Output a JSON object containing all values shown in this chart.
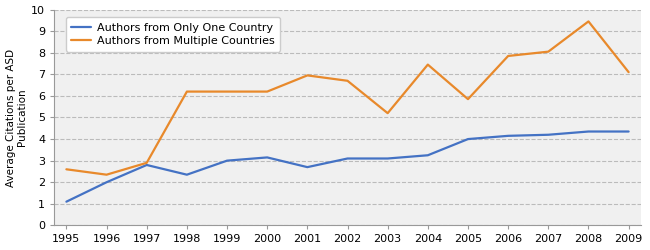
{
  "years": [
    1995,
    1996,
    1997,
    1998,
    1999,
    2000,
    2001,
    2002,
    2003,
    2004,
    2005,
    2006,
    2007,
    2008,
    2009
  ],
  "single_country": [
    1.1,
    2.0,
    2.8,
    2.35,
    3.0,
    3.15,
    2.7,
    3.1,
    3.1,
    3.25,
    4.0,
    4.15,
    4.2,
    4.35,
    4.35
  ],
  "multi_country": [
    2.6,
    2.35,
    2.9,
    6.2,
    6.2,
    6.2,
    6.95,
    6.7,
    5.2,
    7.45,
    5.85,
    7.85,
    8.05,
    9.45,
    7.1
  ],
  "single_color": "#4472C4",
  "multi_color": "#E8892B",
  "single_label": "Authors from Only One Country",
  "multi_label": "Authors from Multiple Countries",
  "ylabel": "Average Citations per ASD\nPublication",
  "ylim": [
    0,
    10
  ],
  "yticks": [
    0,
    1,
    2,
    3,
    4,
    5,
    6,
    7,
    8,
    9,
    10
  ],
  "xlim_min": 1995,
  "xlim_max": 2009,
  "background_color": "#ffffff",
  "plot_bg_color": "#f0f0f0",
  "grid_color": "#bbbbbb",
  "linewidth": 1.6,
  "tick_fontsize": 8,
  "ylabel_fontsize": 7.5,
  "legend_fontsize": 8
}
